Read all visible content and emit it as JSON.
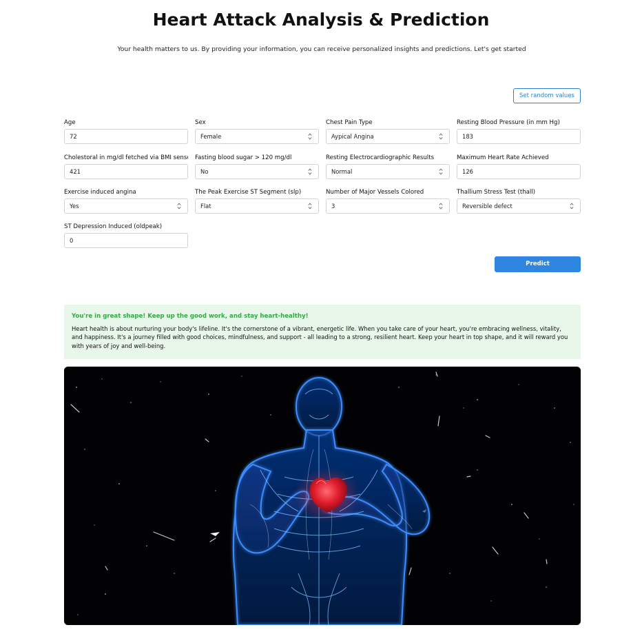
{
  "header": {
    "title": "Heart Attack Analysis & Prediction",
    "subtitle": "Your health matters to us. By providing your information, you can receive personalized insights and predictions. Let's get started"
  },
  "actions": {
    "random_label": "Set random values",
    "predict_label": "Predict"
  },
  "form": {
    "age": {
      "label": "Age",
      "value": "72"
    },
    "sex": {
      "label": "Sex",
      "value": "Female"
    },
    "cp": {
      "label": "Chest Pain Type",
      "value": "Aypical Angina"
    },
    "trtbps": {
      "label": "Resting Blood Pressure (in mm Hg)",
      "value": "183"
    },
    "chol": {
      "label": "Cholestoral in mg/dl fetched via BMI sensor",
      "value": "421"
    },
    "fbs": {
      "label": "Fasting blood sugar > 120 mg/dl",
      "value": "No"
    },
    "restecg": {
      "label": "Resting Electrocardiographic Results",
      "value": "Normal"
    },
    "thalachh": {
      "label": "Maximum Heart Rate Achieved",
      "value": "126"
    },
    "exng": {
      "label": "Exercise induced angina",
      "value": "Yes"
    },
    "slp": {
      "label": "The Peak Exercise ST Segment (slp)",
      "value": "Flat"
    },
    "caa": {
      "label": "Number of Major Vessels Colored",
      "value": "3"
    },
    "thall": {
      "label": "Thallium Stress Test (thall)",
      "value": "Reversible defect"
    },
    "oldpeak": {
      "label": "ST Depression Induced (oldpeak)",
      "value": "0"
    }
  },
  "result": {
    "heading": "You're in great shape! Keep up the good work, and stay heart-healthy!",
    "body": "Heart health is about nurturing your body's lifeline. It's the cornerstone of a vibrant, energetic life. When you take care of your heart, you're embracing wellness, vitality, and happiness. It's a journey filled with good choices, mindfulness, and support - all leading to a strong, resilient heart. Keep your heart in top shape, and it will reward you with years of joy and well-being."
  },
  "colors": {
    "accent": "#2f86e0",
    "success_text": "#35a84a",
    "success_bg": "#e9f6ea"
  }
}
